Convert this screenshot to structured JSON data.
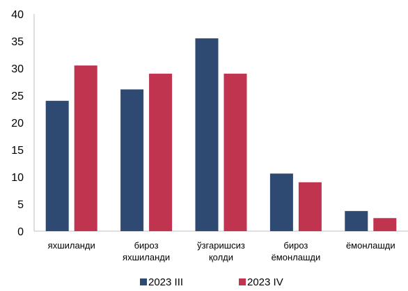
{
  "chart_data": {
    "type": "bar",
    "categories": [
      [
        "яхшиланди"
      ],
      [
        "бироз",
        "яхшиланди"
      ],
      [
        "ўзгаришсиз",
        "қолди"
      ],
      [
        "бироз",
        "ёмонлашди"
      ],
      [
        "ёмонлашди"
      ]
    ],
    "series": [
      {
        "name": "2023 III",
        "color": "#2E4A72",
        "values": [
          24,
          26.1,
          35.5,
          10.6,
          3.7
        ]
      },
      {
        "name": "2023 IV",
        "color": "#C0344F",
        "values": [
          30.5,
          29,
          29,
          9,
          2.4
        ]
      }
    ],
    "ylim": [
      0,
      40
    ],
    "yticks": [
      0,
      5,
      10,
      15,
      20,
      25,
      30,
      35,
      40
    ],
    "grid": false,
    "legend": "bottom"
  }
}
